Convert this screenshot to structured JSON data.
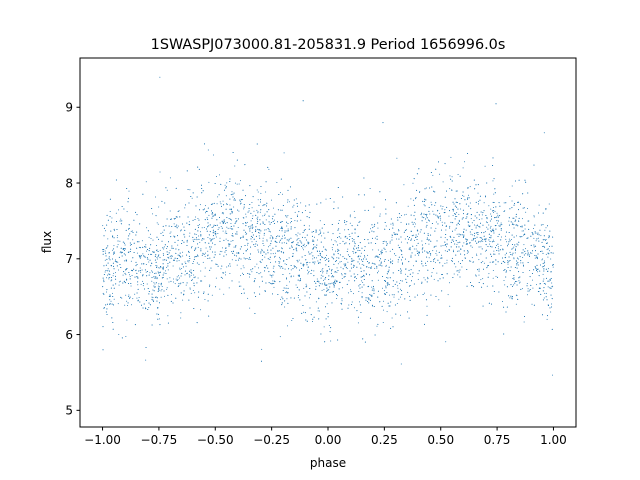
{
  "chart_data": {
    "type": "scatter",
    "title": "1SWASPJ073000.81-205831.9 Period 1656996.0s",
    "xlabel": "phase",
    "ylabel": "flux",
    "xlim": [
      -1.1,
      1.1
    ],
    "ylim": [
      4.78,
      9.65
    ],
    "xticks": [
      -1.0,
      -0.75,
      -0.5,
      -0.25,
      0.0,
      0.25,
      0.5,
      0.75,
      1.0
    ],
    "xtick_labels": [
      "−1.00",
      "−0.75",
      "−0.50",
      "−0.25",
      "0.00",
      "0.25",
      "0.50",
      "0.75",
      "1.00"
    ],
    "yticks": [
      5,
      6,
      7,
      8,
      9
    ],
    "ytick_labels": [
      "5",
      "6",
      "7",
      "8",
      "9"
    ],
    "grid": false,
    "marker_color": "#1f77b4",
    "series": [
      {
        "profile_phase": [
          -1.0,
          -0.9,
          -0.8,
          -0.7,
          -0.6,
          -0.5,
          -0.45,
          -0.4,
          -0.3,
          -0.2,
          -0.1,
          0.0,
          0.1,
          0.2,
          0.3,
          0.4,
          0.5,
          0.55,
          0.6,
          0.7,
          0.8,
          0.9,
          1.0
        ],
        "profile_flux": [
          6.85,
          6.95,
          6.9,
          7.0,
          7.2,
          7.35,
          7.4,
          7.35,
          7.3,
          7.15,
          7.0,
          6.85,
          6.95,
          6.9,
          7.0,
          7.2,
          7.35,
          7.4,
          7.35,
          7.3,
          7.15,
          7.0,
          6.85
        ]
      }
    ]
  }
}
